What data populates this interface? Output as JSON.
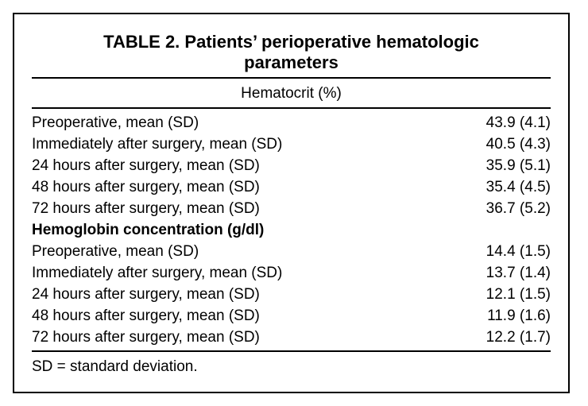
{
  "table": {
    "title_line1": "TABLE 2. Patients’ perioperative hematologic",
    "title_line2": "parameters",
    "column_header": "Hematocrit (%)",
    "hematocrit_rows": [
      {
        "label": "Preoperative, mean (SD)",
        "value": "43.9 (4.1)"
      },
      {
        "label": "Immediately after surgery, mean (SD)",
        "value": "40.5 (4.3)"
      },
      {
        "label": "24 hours after surgery, mean (SD)",
        "value": "35.9 (5.1)"
      },
      {
        "label": "48 hours after surgery, mean (SD)",
        "value": "35.4 (4.5)"
      },
      {
        "label": "72 hours after surgery, mean (SD)",
        "value": "36.7 (5.2)"
      }
    ],
    "section_hemoglobin": "Hemoglobin concentration (g/dl)",
    "hemoglobin_rows": [
      {
        "label": "Preoperative, mean (SD)",
        "value": "14.4 (1.5)"
      },
      {
        "label": "Immediately after surgery, mean (SD)",
        "value": "13.7 (1.4)"
      },
      {
        "label": "24 hours after surgery, mean (SD)",
        "value": "12.1 (1.5)"
      },
      {
        "label": "48 hours after surgery, mean (SD)",
        "value": "11.9 (1.6)"
      },
      {
        "label": "72 hours after surgery, mean (SD)",
        "value": "12.2 (1.7)"
      }
    ],
    "footnote": "SD = standard deviation."
  }
}
